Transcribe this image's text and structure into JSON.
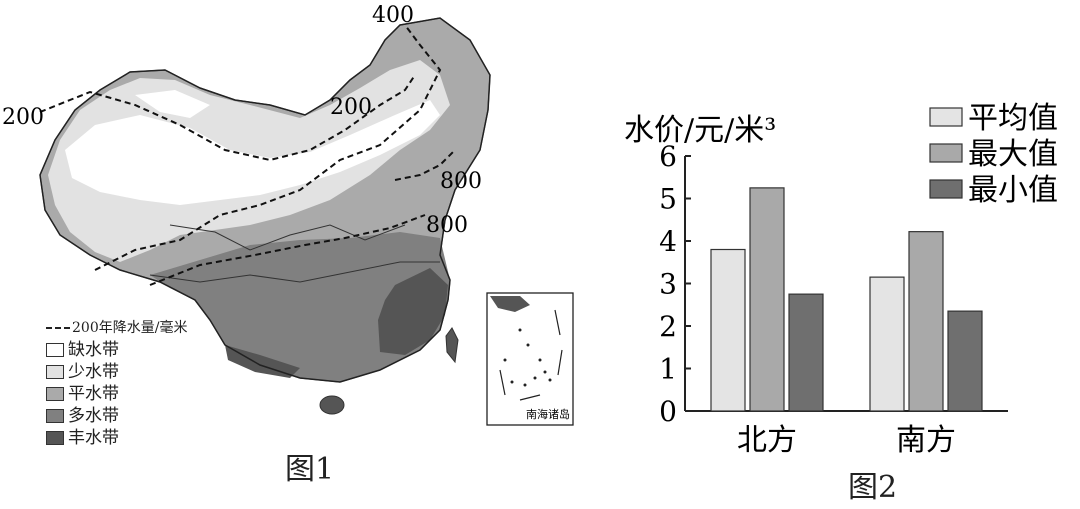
{
  "figure1": {
    "caption": "图1",
    "contour_labels": [
      "400",
      "200",
      "200",
      "800",
      "800"
    ],
    "legend": {
      "line_label": "200年降水量/毫米",
      "items": [
        {
          "label": "缺水带",
          "color": "#ffffff"
        },
        {
          "label": "少水带",
          "color": "#e2e2e2"
        },
        {
          "label": "平水带",
          "color": "#aaaaaa"
        },
        {
          "label": "多水带",
          "color": "#808080"
        },
        {
          "label": "丰水带",
          "color": "#555555"
        }
      ]
    },
    "inset_label": "南海诸岛"
  },
  "figure2": {
    "caption": "图2",
    "chart_data": {
      "type": "bar",
      "ylabel": "水价/元/米³",
      "ylim": [
        0,
        6
      ],
      "yticks": [
        0,
        1,
        2,
        3,
        4,
        5,
        6
      ],
      "categories": [
        "北方",
        "南方"
      ],
      "legend_position": "top-right",
      "series": [
        {
          "name": "平均值",
          "values": [
            3.8,
            3.15
          ],
          "color": "#e4e4e4"
        },
        {
          "name": "最大值",
          "values": [
            5.25,
            4.22
          ],
          "color": "#a9a9a9"
        },
        {
          "name": "最小值",
          "values": [
            2.75,
            2.35
          ],
          "color": "#6f6f6f"
        }
      ]
    }
  }
}
